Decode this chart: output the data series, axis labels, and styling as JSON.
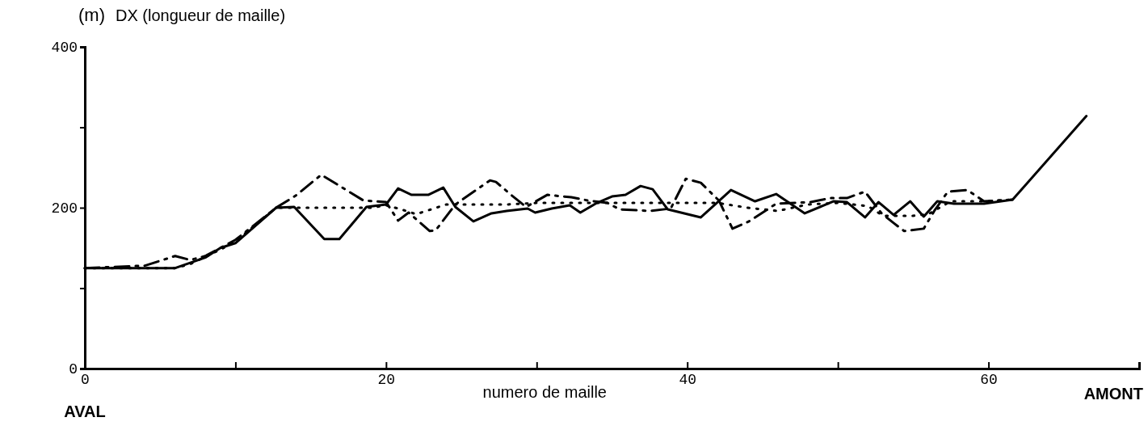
{
  "chart_data": {
    "type": "line",
    "title": "DX (longueur de maille)",
    "ylabel": "(m)",
    "xlabel": "numero de maille",
    "annotations": [
      "AVAL",
      "AMONT"
    ],
    "xlim": [
      0,
      70
    ],
    "xticks": [
      0,
      {
        "value": 10,
        "label": null
      },
      20,
      {
        "value": 30,
        "label": null
      },
      40,
      {
        "value": 50,
        "label": null
      },
      60,
      {
        "value": 70,
        "label": null
      }
    ],
    "ylim": [
      0,
      400
    ],
    "yticks": [
      0,
      {
        "value": 100,
        "label": null
      },
      200,
      {
        "value": 300,
        "label": null
      },
      400
    ],
    "grid": false,
    "marker": "none",
    "series": [
      {
        "color": "#000000",
        "line_style": "solid",
        "x": [
          0,
          6,
          8,
          9,
          10,
          12.7,
          13.9,
          15.9,
          16.9,
          18.7,
          20,
          20.8,
          21.7,
          22.8,
          23.8,
          24.6,
          25.8,
          27,
          28,
          29.4,
          29.9,
          31,
          32.2,
          32.9,
          34,
          35,
          35.9,
          36.9,
          37.7,
          38.7,
          40.9,
          42.9,
          44.5,
          45.9,
          47.8,
          49.7,
          50.6,
          51.8,
          52.7,
          53.7,
          54.8,
          55.7,
          56.6,
          57.7,
          59.7,
          61.6,
          66.5
        ],
        "values": [
          125,
          125,
          138,
          150,
          156,
          200,
          201,
          161,
          161,
          201,
          204,
          224,
          216,
          216,
          225,
          201,
          183,
          193,
          196,
          199,
          194,
          199,
          203,
          194,
          206,
          214,
          216,
          227,
          223,
          198,
          188,
          222,
          208,
          217,
          193,
          208,
          207,
          188,
          207,
          191,
          208,
          189,
          208,
          205,
          205,
          210,
          314
        ]
      },
      {
        "color": "#000000",
        "line_style": "dotted",
        "x": [
          0,
          6,
          7,
          9,
          10,
          12.7,
          14,
          16,
          18,
          19,
          20,
          21,
          22,
          23,
          24,
          26,
          28,
          30,
          32,
          34,
          36,
          38,
          40,
          42,
          44,
          46,
          48,
          50,
          52,
          53,
          54,
          55,
          56,
          57.5,
          59.7,
          61.6
        ],
        "values": [
          125,
          125,
          130,
          148,
          158,
          200,
          200,
          200,
          200,
          200,
          203,
          198,
          192,
          198,
          204,
          204,
          204,
          206,
          206,
          206,
          206,
          206,
          206,
          206,
          200,
          196,
          204,
          206,
          202,
          190,
          190,
          190,
          192,
          208,
          208,
          210
        ]
      },
      {
        "color": "#000000",
        "line_style": "dashdot",
        "x": [
          0,
          4,
          6,
          7,
          8,
          9,
          10,
          12.7,
          14,
          15.7,
          18.5,
          20,
          20.8,
          21.5,
          22.9,
          23.3,
          24.6,
          26.9,
          27.3,
          28.3,
          29.3,
          30.7,
          32.3,
          33.4,
          34.7,
          35.5,
          37.5,
          38.9,
          39.9,
          40.9,
          42.1,
          43,
          44.1,
          45.9,
          48.2,
          49.5,
          50.6,
          51.8,
          52.9,
          53.7,
          54.4,
          55.7,
          56.4,
          57.3,
          58.6,
          59.7,
          61.6
        ],
        "values": [
          125,
          128,
          140,
          135,
          140,
          150,
          160,
          200,
          215,
          241,
          209,
          207,
          184,
          194,
          171,
          172,
          204,
          234,
          232,
          216,
          201,
          216,
          213,
          209,
          206,
          198,
          196,
          199,
          236,
          231,
          209,
          174,
          183,
          205,
          207,
          212,
          212,
          220,
          193,
          181,
          171,
          174,
          196,
          220,
          222,
          208,
          210
        ]
      }
    ]
  }
}
